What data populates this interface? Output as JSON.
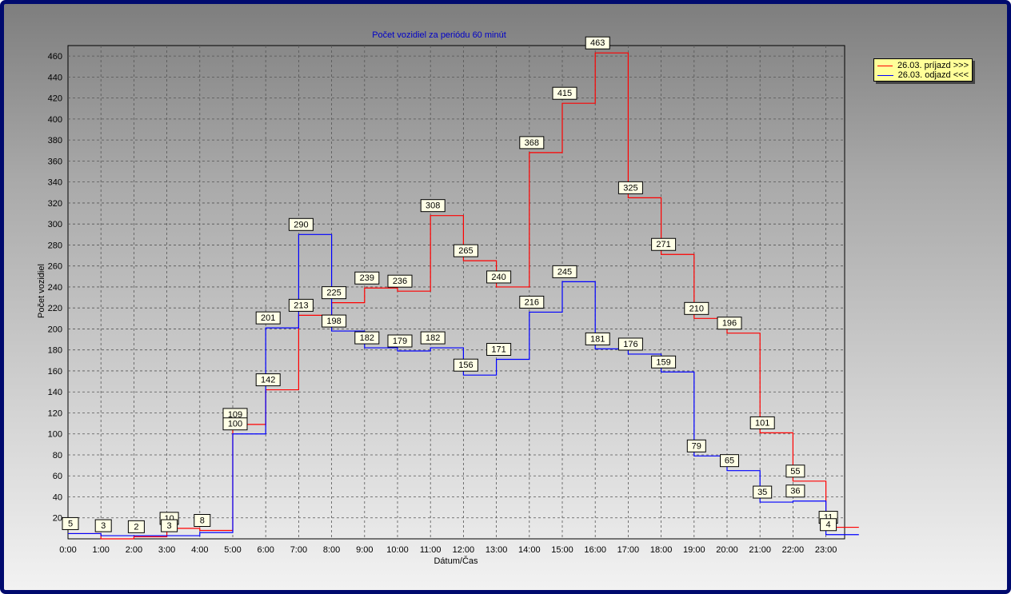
{
  "chart_data": {
    "type": "line",
    "step": true,
    "title": "Počet vozidiel za periódu 60 minút",
    "xlabel": "Dátum/Čas",
    "ylabel": "Počet vozidiel",
    "categories": [
      "0:00",
      "1:00",
      "2:00",
      "3:00",
      "4:00",
      "5:00",
      "6:00",
      "7:00",
      "8:00",
      "9:00",
      "10:00",
      "11:00",
      "12:00",
      "13:00",
      "14:00",
      "15:00",
      "16:00",
      "17:00",
      "18:00",
      "19:00",
      "20:00",
      "21:00",
      "22:00",
      "23:00"
    ],
    "yticks": [
      20,
      40,
      60,
      80,
      100,
      120,
      140,
      160,
      180,
      200,
      220,
      240,
      260,
      280,
      300,
      320,
      340,
      360,
      380,
      400,
      420,
      440,
      460
    ],
    "ylim": [
      0,
      470
    ],
    "grid": true,
    "legend_position": "top-right",
    "series": [
      {
        "name": "26.03.  príjazd >>>",
        "color": "#ff0000",
        "values": [
          5,
          0,
          2,
          10,
          8,
          109,
          142,
          213,
          225,
          239,
          236,
          308,
          265,
          240,
          368,
          415,
          463,
          325,
          271,
          210,
          196,
          101,
          55,
          11
        ]
      },
      {
        "name": "26.03.  odjazd <<<",
        "color": "#0000ff",
        "values": [
          5,
          3,
          3,
          3,
          6,
          100,
          201,
          290,
          198,
          182,
          179,
          182,
          156,
          171,
          216,
          245,
          181,
          176,
          159,
          79,
          65,
          35,
          36,
          4
        ]
      }
    ],
    "data_labels": [
      {
        "text": "5",
        "x": "0:00"
      },
      {
        "text": "3",
        "x": "1:00"
      },
      {
        "text": "2",
        "x": "2:00"
      },
      {
        "text": "10",
        "x": "3:00"
      },
      {
        "text": "3",
        "x": "3:00"
      },
      {
        "text": "8",
        "x": "4:00"
      },
      {
        "text": "109",
        "x": "5:00"
      },
      {
        "text": "100",
        "x": "5:00"
      },
      {
        "text": "201",
        "x": "6:00"
      },
      {
        "text": "142",
        "x": "6:00"
      },
      {
        "text": "290",
        "x": "7:00"
      },
      {
        "text": "213",
        "x": "7:00"
      },
      {
        "text": "225",
        "x": "8:00"
      },
      {
        "text": "198",
        "x": "8:00"
      },
      {
        "text": "239",
        "x": "9:00"
      },
      {
        "text": "182",
        "x": "9:00"
      },
      {
        "text": "236",
        "x": "10:00"
      },
      {
        "text": "179",
        "x": "10:00"
      },
      {
        "text": "308",
        "x": "11:00"
      },
      {
        "text": "182",
        "x": "11:00"
      },
      {
        "text": "265",
        "x": "12:00"
      },
      {
        "text": "156",
        "x": "12:00"
      },
      {
        "text": "240",
        "x": "13:00"
      },
      {
        "text": "171",
        "x": "13:00"
      },
      {
        "text": "368",
        "x": "14:00"
      },
      {
        "text": "216",
        "x": "14:00"
      },
      {
        "text": "415",
        "x": "15:00"
      },
      {
        "text": "245",
        "x": "15:00"
      },
      {
        "text": "463",
        "x": "16:00"
      },
      {
        "text": "181",
        "x": "16:00"
      },
      {
        "text": "325",
        "x": "17:00"
      },
      {
        "text": "176",
        "x": "17:00"
      },
      {
        "text": "271",
        "x": "18:00"
      },
      {
        "text": "159",
        "x": "18:00"
      },
      {
        "text": "210",
        "x": "19:00"
      },
      {
        "text": "79",
        "x": "19:00"
      },
      {
        "text": "196",
        "x": "20:00"
      },
      {
        "text": "65",
        "x": "20:00"
      },
      {
        "text": "101",
        "x": "21:00"
      },
      {
        "text": "35",
        "x": "21:00"
      },
      {
        "text": "55",
        "x": "22:00"
      },
      {
        "text": "36",
        "x": "22:00"
      },
      {
        "text": "11",
        "x": "23:00"
      },
      {
        "text": "4",
        "x": "23:00"
      }
    ]
  }
}
